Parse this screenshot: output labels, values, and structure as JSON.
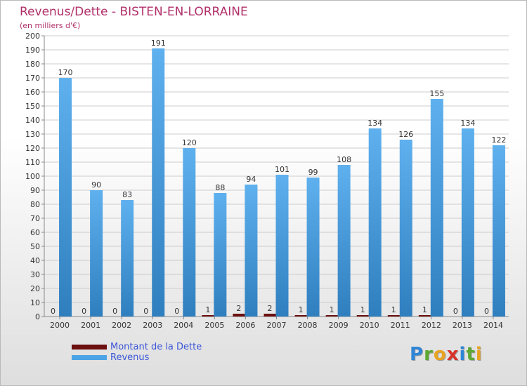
{
  "title": "Revenus/Dette - BISTEN-EN-LORRAINE",
  "subtitle": "(en milliers d'€)",
  "logo": {
    "text": "Proxiti",
    "letters": [
      {
        "ch": "P",
        "color": "#2f86d6"
      },
      {
        "ch": "r",
        "color": "#5da832"
      },
      {
        "ch": "o",
        "color": "#e8a321"
      },
      {
        "ch": "x",
        "color": "#d8322a"
      },
      {
        "ch": "i",
        "color": "#2f86d6"
      },
      {
        "ch": "t",
        "color": "#5da832"
      },
      {
        "ch": "i",
        "color": "#e8a321"
      }
    ]
  },
  "colors": {
    "title": "#b0306a",
    "legend_text": "#3b56d8",
    "gridline": "#cccccc",
    "axis": "#888888"
  },
  "chart_data": {
    "type": "bar",
    "title": "Revenus/Dette - BISTEN-EN-LORRAINE",
    "subtitle": "(en milliers d'€)",
    "categories": [
      "2000",
      "2001",
      "2002",
      "2003",
      "2004",
      "2005",
      "2006",
      "2007",
      "2008",
      "2009",
      "2010",
      "2011",
      "2012",
      "2013",
      "2014"
    ],
    "series": [
      {
        "name": "Montant de la Dette",
        "color": "#6b0f0f",
        "values": [
          0,
          0,
          0,
          0,
          0,
          1,
          2,
          2,
          1,
          1,
          1,
          1,
          1,
          0,
          0
        ],
        "labels": [
          "0",
          "0",
          "0",
          "0",
          "0",
          "1",
          "2",
          "2",
          "1",
          "1",
          "1",
          "1",
          "1",
          "0",
          "0"
        ]
      },
      {
        "name": "Revenus",
        "color": "#4ca3e6",
        "values": [
          170,
          90,
          83,
          191,
          120,
          88,
          94,
          101,
          99,
          108,
          134,
          126,
          155,
          134,
          122
        ],
        "labels": [
          "170",
          "90",
          "83",
          "191",
          "120",
          "88",
          "94",
          "101",
          "99",
          "108",
          "134",
          "126",
          "155",
          "134",
          "122"
        ]
      }
    ],
    "ylim": [
      0,
      200
    ],
    "ytick_labels": [
      "0",
      "10",
      "20",
      "30",
      "40",
      "50",
      "60",
      "70",
      "80",
      "90",
      "100",
      "110",
      "120",
      "130",
      "140",
      "150",
      "160",
      "170",
      "180",
      "190",
      "200"
    ],
    "grid": true,
    "legend_position": "bottom-left"
  }
}
